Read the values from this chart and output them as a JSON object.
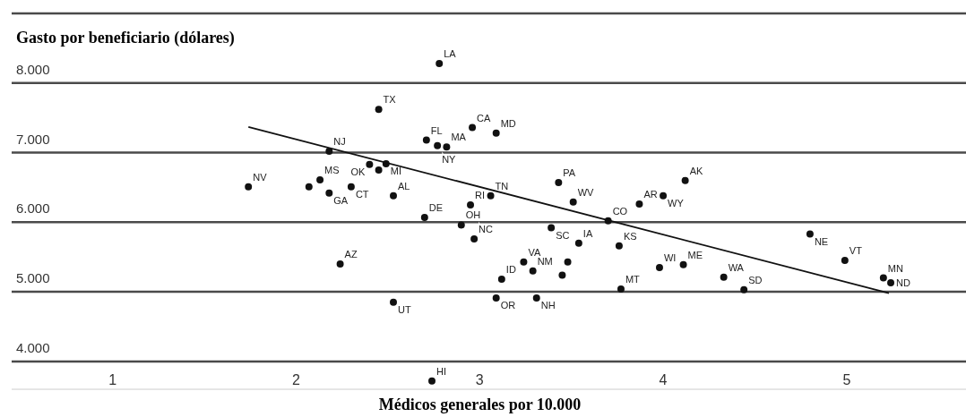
{
  "chart_data": {
    "type": "scatter",
    "ylabel": "Gasto por beneficiario (dólares)",
    "xlabel": "Médicos generales por 10.000",
    "xlim": [
      0.45,
      5.65
    ],
    "xticks": [
      1,
      2,
      3,
      4,
      5
    ],
    "ylim": [
      3600,
      9000
    ],
    "yticks": [
      {
        "value": 4000,
        "label": "4.000"
      },
      {
        "value": 5000,
        "label": "5.000"
      },
      {
        "value": 6000,
        "label": "6.000"
      },
      {
        "value": 7000,
        "label": "7.000"
      },
      {
        "value": 8000,
        "label": "8.000"
      },
      {
        "value": 9000,
        "label": null
      }
    ],
    "grid": "y",
    "marker": "circle",
    "series": [
      {
        "color": "#111111",
        "x": [
          2.78,
          2.45,
          2.71,
          2.77,
          2.82,
          2.96,
          3.09,
          2.18,
          2.4,
          2.45,
          2.49,
          1.74,
          2.07,
          2.13,
          2.18,
          2.3,
          2.53,
          2.7,
          2.95,
          2.9,
          2.97,
          3.06,
          3.43,
          3.51,
          3.87,
          4.0,
          4.12,
          3.39,
          3.7,
          3.54,
          3.76,
          3.24,
          3.12,
          3.29,
          3.48,
          3.45,
          3.09,
          3.31,
          3.77,
          3.98,
          4.11,
          4.33,
          4.44,
          4.8,
          4.99,
          5.2,
          5.24,
          2.24,
          2.53,
          2.74
        ],
        "values": [
          8280,
          7620,
          7180,
          7100,
          7080,
          7360,
          7280,
          7020,
          6830,
          6750,
          6840,
          6510,
          6510,
          6610,
          6420,
          6510,
          6380,
          6070,
          6250,
          5960,
          5760,
          6380,
          6570,
          6290,
          6260,
          6380,
          6600,
          5920,
          6020,
          5700,
          5660,
          5430,
          5180,
          5300,
          5430,
          5240,
          4910,
          4910,
          5040,
          5350,
          5390,
          5210,
          5030,
          5830,
          5450,
          5200,
          5130,
          5400,
          4850,
          3720
        ]
      },
      {
        "type": "line",
        "color": "#111111",
        "marker": "none",
        "x": [
          1.74,
          5.23
        ],
        "values": [
          7370,
          4980
        ]
      }
    ],
    "annotations": [
      {
        "text": "LA",
        "x": 2.78,
        "y": 8280
      },
      {
        "text": "TX",
        "x": 2.45,
        "y": 7620
      },
      {
        "text": "FL",
        "x": 2.71,
        "y": 7180
      },
      {
        "text": "NY",
        "x": 2.77,
        "y": 7100
      },
      {
        "text": "MA",
        "x": 2.82,
        "y": 7080
      },
      {
        "text": "CA",
        "x": 2.96,
        "y": 7360
      },
      {
        "text": "MD",
        "x": 3.09,
        "y": 7280
      },
      {
        "text": "NJ",
        "x": 2.18,
        "y": 7020
      },
      {
        "text": "OK",
        "x": 2.4,
        "y": 6830
      },
      {
        "text": "MI",
        "x": 2.49,
        "y": 6840
      },
      {
        "text": "NV",
        "x": 1.74,
        "y": 6510
      },
      {
        "text": "MS",
        "x": 2.13,
        "y": 6610
      },
      {
        "text": "GA",
        "x": 2.18,
        "y": 6420
      },
      {
        "text": "CT",
        "x": 2.3,
        "y": 6510
      },
      {
        "text": "AL",
        "x": 2.53,
        "y": 6380
      },
      {
        "text": "DE",
        "x": 2.7,
        "y": 6070
      },
      {
        "text": "RI",
        "x": 2.95,
        "y": 6250
      },
      {
        "text": "OH",
        "x": 2.9,
        "y": 5960
      },
      {
        "text": "NC",
        "x": 2.97,
        "y": 5760
      },
      {
        "text": "TN",
        "x": 3.06,
        "y": 6380
      },
      {
        "text": "PA",
        "x": 3.43,
        "y": 6570
      },
      {
        "text": "WV",
        "x": 3.51,
        "y": 6290
      },
      {
        "text": "AR",
        "x": 3.87,
        "y": 6260
      },
      {
        "text": "WY",
        "x": 4.0,
        "y": 6380
      },
      {
        "text": "AK",
        "x": 4.12,
        "y": 6600
      },
      {
        "text": "SC",
        "x": 3.39,
        "y": 5920
      },
      {
        "text": "CO",
        "x": 3.7,
        "y": 6020
      },
      {
        "text": "IA",
        "x": 3.54,
        "y": 5700
      },
      {
        "text": "KS",
        "x": 3.76,
        "y": 5660
      },
      {
        "text": "VA",
        "x": 3.24,
        "y": 5430
      },
      {
        "text": "ID",
        "x": 3.12,
        "y": 5180
      },
      {
        "text": "NM",
        "x": 3.29,
        "y": 5300
      },
      {
        "text": "OR",
        "x": 3.09,
        "y": 4910
      },
      {
        "text": "NH",
        "x": 3.31,
        "y": 4910
      },
      {
        "text": "MT",
        "x": 3.77,
        "y": 5040
      },
      {
        "text": "WI",
        "x": 3.98,
        "y": 5350
      },
      {
        "text": "ME",
        "x": 4.11,
        "y": 5390
      },
      {
        "text": "WA",
        "x": 4.33,
        "y": 5210
      },
      {
        "text": "SD",
        "x": 4.44,
        "y": 5030
      },
      {
        "text": "NE",
        "x": 4.8,
        "y": 5830
      },
      {
        "text": "VT",
        "x": 4.99,
        "y": 5450
      },
      {
        "text": "MN",
        "x": 5.2,
        "y": 5200
      },
      {
        "text": "ND",
        "x": 5.24,
        "y": 5130
      },
      {
        "text": "AZ",
        "x": 2.24,
        "y": 5400
      },
      {
        "text": "UT",
        "x": 2.53,
        "y": 4850
      },
      {
        "text": "HI",
        "x": 2.74,
        "y": 3720
      }
    ]
  }
}
